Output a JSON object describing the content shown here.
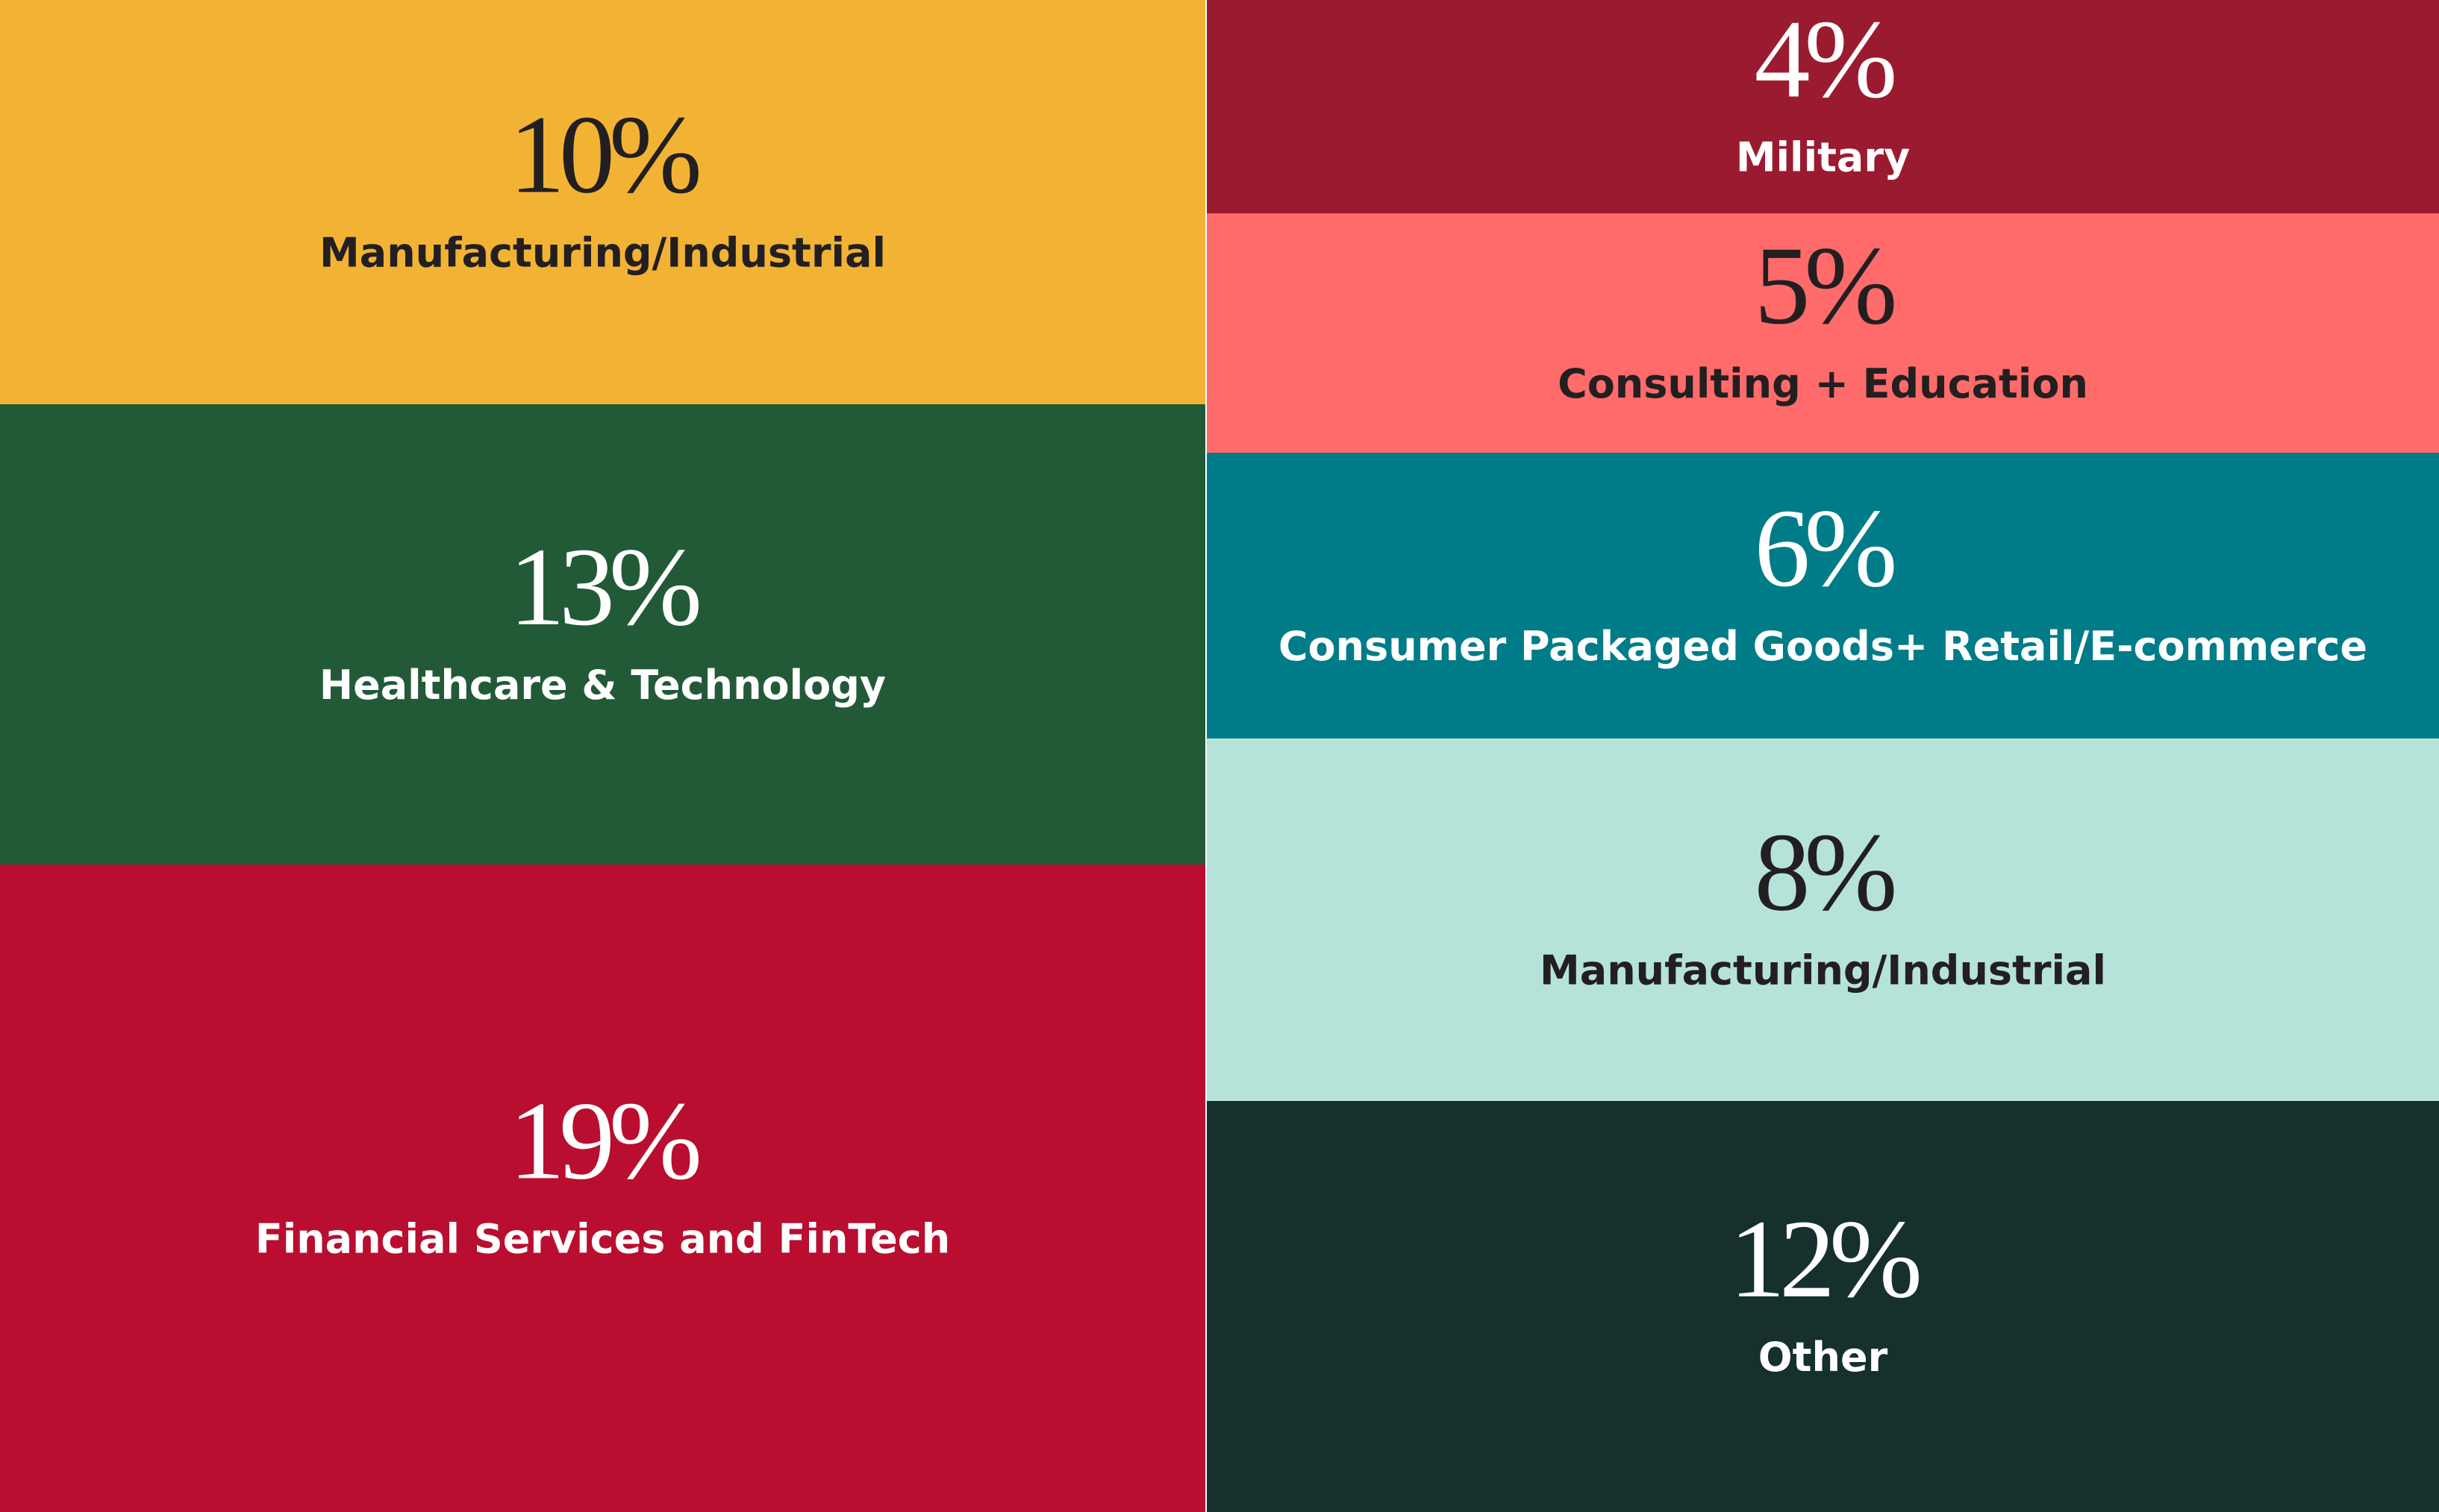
{
  "chart_data": {
    "type": "treemap",
    "categories": [
      "Manufacturing/Industrial",
      "Healthcare & Technology",
      "Financial Services and FinTech",
      "Military",
      "Consulting + Education",
      "Consumer Packaged Goods+ Retail/E-commerce",
      "Manufacturing/Industrial",
      "Other"
    ],
    "values": [
      10,
      13,
      19,
      4,
      5,
      6,
      8,
      12
    ],
    "value_labels": [
      "10%",
      "13%",
      "19%",
      "4%",
      "5%",
      "6%",
      "8%",
      "12%"
    ],
    "colors": [
      "#F2B335",
      "#225A37",
      "#B90E2F",
      "#9A1B30",
      "#FF6B6B",
      "#007C89",
      "#B5E3DA",
      "#15302D"
    ],
    "label_colors": [
      "#231f20",
      "#ffffff",
      "#ffffff",
      "#ffffff",
      "#231f20",
      "#ffffff",
      "#231f20",
      "#ffffff"
    ]
  }
}
